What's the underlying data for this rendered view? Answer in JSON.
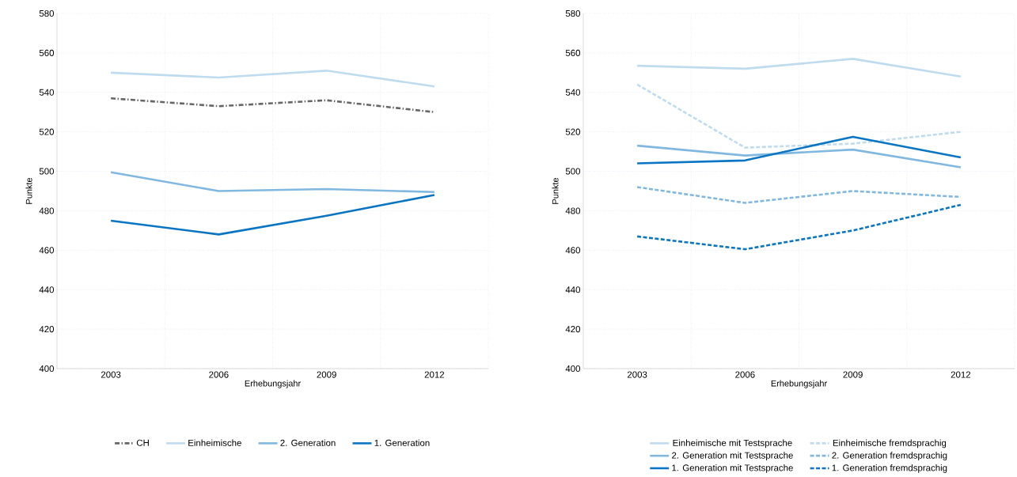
{
  "chart_data": [
    {
      "type": "line",
      "categories": [
        "2003",
        "2006",
        "2009",
        "2012"
      ],
      "xlabel": "Erhebungsjahr",
      "ylabel": "Punkte",
      "ylim": [
        400,
        580
      ],
      "yticks": [
        400,
        420,
        440,
        460,
        480,
        500,
        520,
        540,
        560,
        580
      ],
      "grid": true,
      "legend": "bottom",
      "marker": "none",
      "line_style": "solid",
      "series": [
        {
          "name": "CH",
          "color": "#666666",
          "line_style": "dashdot",
          "values": [
            537,
            533,
            536,
            530
          ]
        },
        {
          "name": "Einheimische",
          "color": "#bfdcef",
          "values": [
            550,
            547.5,
            551,
            543
          ]
        },
        {
          "name": "2. Generation",
          "color": "#80b8e0",
          "values": [
            499.5,
            490,
            491,
            489.5
          ]
        },
        {
          "name": "1. Generation",
          "color": "#0a75c2",
          "values": [
            475,
            468,
            477.5,
            488
          ]
        }
      ]
    },
    {
      "type": "line",
      "categories": [
        "2003",
        "2006",
        "2009",
        "2012"
      ],
      "xlabel": "Erhebungsjahr",
      "ylabel": "Punkte",
      "ylim": [
        400,
        580
      ],
      "yticks": [
        400,
        420,
        440,
        460,
        480,
        500,
        520,
        540,
        560,
        580
      ],
      "grid": true,
      "legend": "bottom",
      "marker": "none",
      "line_style": "solid",
      "series": [
        {
          "name": "Einheimische mit Testsprache",
          "color": "#bfdcef",
          "values": [
            553.5,
            552,
            557,
            548
          ]
        },
        {
          "name": "Einheimische fremdsprachig",
          "color": "#bfdcef",
          "line_style": "dashed",
          "values": [
            544,
            512,
            514,
            520
          ]
        },
        {
          "name": "2. Generation mit Testsprache",
          "color": "#80b8e0",
          "values": [
            513,
            508,
            511,
            502
          ]
        },
        {
          "name": "2. Generation fremdsprachig",
          "color": "#80b8e0",
          "line_style": "dashed",
          "values": [
            492,
            484,
            490,
            487
          ]
        },
        {
          "name": "1. Generation mit Testsprache",
          "color": "#0a75c2",
          "values": [
            504,
            505.5,
            517.5,
            507
          ]
        },
        {
          "name": "1. Generation fremdsprachig",
          "color": "#0a75c2",
          "line_style": "dashed",
          "values": [
            467,
            460.5,
            470,
            483
          ]
        }
      ]
    }
  ]
}
